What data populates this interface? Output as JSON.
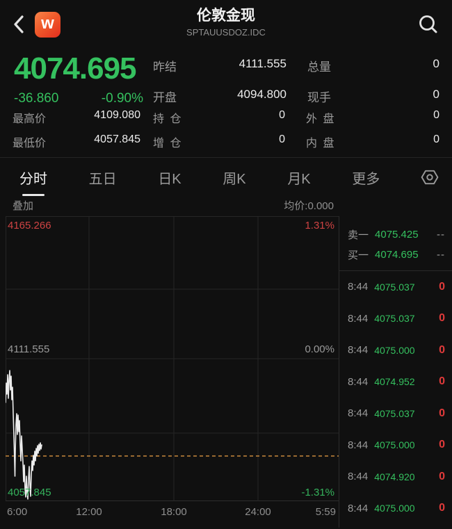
{
  "colors": {
    "up_green": "#35C15F",
    "down_red": "#E23B3B",
    "chart_label_red": "#CF4343",
    "avg_dash_orange": "#C9893C",
    "logo_gradient": [
      "#F8854A",
      "#E42E1E"
    ],
    "background": "#101010",
    "label_gray": "#9B9B9B"
  },
  "header": {
    "title": "伦敦金现",
    "subtitle": "SPTAUUSDOZ.IDC"
  },
  "quote": {
    "last": "4074.695",
    "change": "-36.860",
    "change_pct": "-0.90%",
    "pairs": [
      {
        "label": "昨结",
        "value": "4111.555"
      },
      {
        "label": "总量",
        "value": "0"
      },
      {
        "label": "开盘",
        "value": "4094.800"
      },
      {
        "label": "现手",
        "value": "0"
      }
    ],
    "rows": [
      [
        "最高价",
        "4109.080",
        "持 仓",
        "0",
        "外 盘",
        "0"
      ],
      [
        "最低价",
        "4057.845",
        "增 仓",
        "0",
        "内 盘",
        "0"
      ]
    ]
  },
  "tabs": {
    "items": [
      "分时",
      "五日",
      "日K",
      "周K",
      "月K",
      "更多"
    ],
    "active": "分时"
  },
  "subbar": {
    "overlay": "叠加",
    "avg": "均价:0.000"
  },
  "chart": {
    "top_left": "4165.266",
    "top_right": "1.31%",
    "mid_left": "4111.555",
    "mid_right": "0.00%",
    "bottom_left": "4057.845",
    "bottom_right": "-1.31%",
    "x_ticks": [
      "6:00",
      "12:00",
      "18:00",
      "24:00",
      "5:59"
    ],
    "dash_y": 345,
    "line_points": "0,268 1,240 2,256 3,228 4,262 5,236 6,222 7,250 8,230 9,264 10,246 11,284 12,316 13,354 13.5,374 14,338 15,300 16,284 17,314 18,286 19,310 20,294 21,328 22,352 23,316 24,336 25,354 26,382 27,358 28,392 29,404 30,374 31,398 32,407 33,378 34,360 35,386 36,403 37,372 38,352 39,366 40,344 41,358 42,338 43,352 44,334 45,345 46,330 47,341 48,328 49,337 50,326 51,335 52,329"
  },
  "chart_data": {
    "type": "line",
    "title": "伦敦金现 分时 (intraday)",
    "xlabel": "",
    "ylabel": "",
    "x_ticks": [
      "6:00",
      "12:00",
      "18:00",
      "24:00",
      "5:59"
    ],
    "ylim": [
      4057.845,
      4165.266
    ],
    "y_tick_labels": [
      "4165.266",
      "4111.555",
      "4057.845"
    ],
    "pct_tick_labels": [
      "1.31%",
      "0.00%",
      "-1.31%"
    ],
    "prev_close": 4111.555,
    "avg_price_line": 0.0,
    "current_price": 4074.695,
    "session": {
      "open": 4094.8,
      "high": 4109.08,
      "low": 4057.845,
      "last": 4074.695
    },
    "series": [
      {
        "name": "price",
        "approx_points": [
          {
            "t": "6:00",
            "p": 4095.0
          },
          {
            "t": "6:10",
            "p": 4105.5
          },
          {
            "t": "6:20",
            "p": 4109.1
          },
          {
            "t": "6:35",
            "p": 4098.0
          },
          {
            "t": "6:50",
            "p": 4072.0
          },
          {
            "t": "7:05",
            "p": 4088.0
          },
          {
            "t": "7:20",
            "p": 4079.0
          },
          {
            "t": "7:40",
            "p": 4060.0
          },
          {
            "t": "7:55",
            "p": 4057.8
          },
          {
            "t": "8:10",
            "p": 4066.0
          },
          {
            "t": "8:25",
            "p": 4072.5
          },
          {
            "t": "8:44",
            "p": 4074.7
          }
        ]
      }
    ],
    "legend": [],
    "grid": true
  },
  "book": [
    {
      "label": "卖一",
      "price": "4075.425",
      "extra": "--"
    },
    {
      "label": "买一",
      "price": "4074.695",
      "extra": "--"
    }
  ],
  "ticks": [
    {
      "time": "8:44",
      "price": "4075.037",
      "vol": "0"
    },
    {
      "time": "8:44",
      "price": "4075.037",
      "vol": "0"
    },
    {
      "time": "8:44",
      "price": "4075.000",
      "vol": "0"
    },
    {
      "time": "8:44",
      "price": "4074.952",
      "vol": "0"
    },
    {
      "time": "8:44",
      "price": "4075.037",
      "vol": "0"
    },
    {
      "time": "8:44",
      "price": "4075.000",
      "vol": "0"
    },
    {
      "time": "8:44",
      "price": "4074.920",
      "vol": "0"
    },
    {
      "time": "8:44",
      "price": "4075.000",
      "vol": "0"
    }
  ]
}
